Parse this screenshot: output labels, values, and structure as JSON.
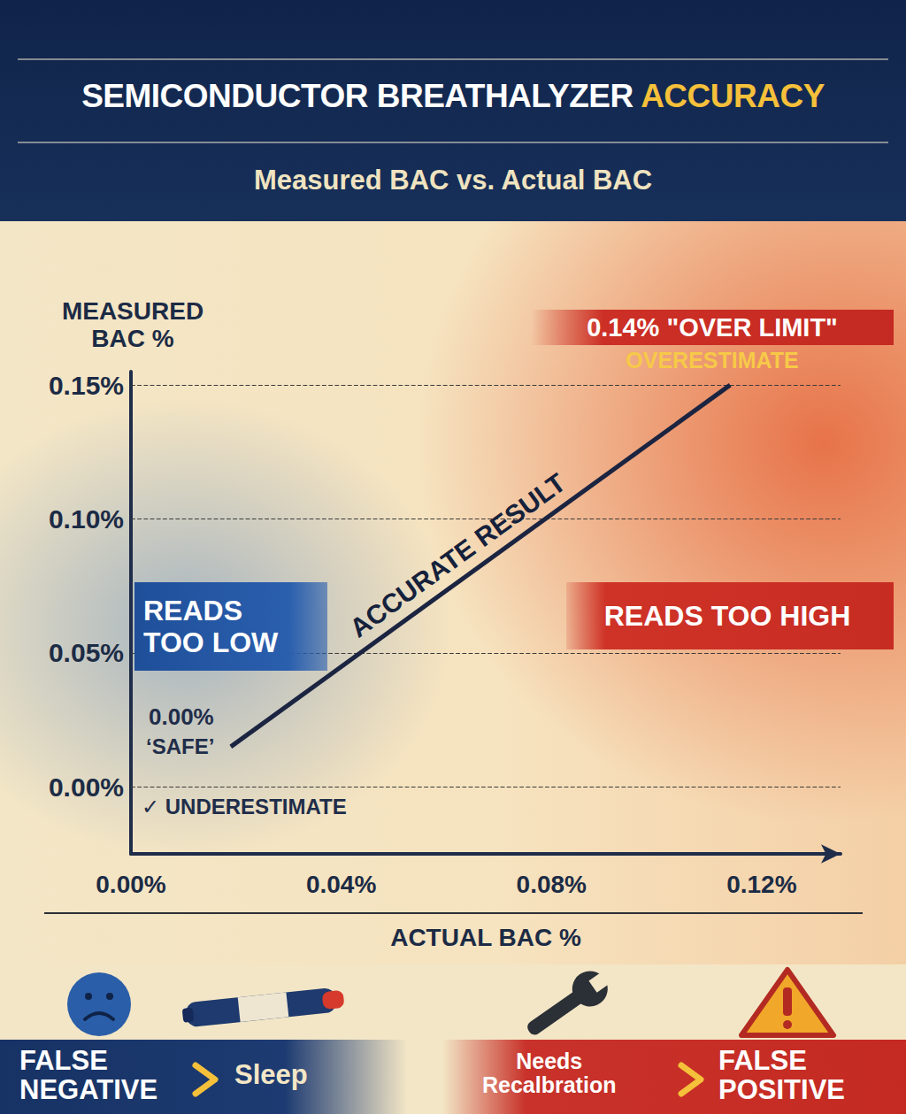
{
  "chart_data": {
    "type": "line",
    "title": "SEMICONDUCTOR BREATHALYZER ACCURACY",
    "subtitle": "Measured BAC vs. Actual BAC",
    "x_label": "ACTUAL BAC %",
    "y_label": "MEASURED BAC %",
    "x": [
      0.019,
      0.114
    ],
    "values": [
      0.015,
      0.15
    ],
    "color": "#1b2440",
    "xlim": [
      0,
      0.135
    ],
    "xticks": [
      {
        "value": 0,
        "label": "0.00%"
      },
      {
        "value": 0.04,
        "label": "0.04%"
      },
      {
        "value": 0.08,
        "label": "0.08%"
      },
      {
        "value": 0.12,
        "label": "0.12%"
      }
    ],
    "ylim": [
      -0.025,
      0.155
    ],
    "yticks": [
      {
        "value": 0,
        "label": "0.00%"
      },
      {
        "value": 0.05,
        "label": "0.05%"
      },
      {
        "value": 0.1,
        "label": "0.10%"
      },
      {
        "value": 0.15,
        "label": "0.15%"
      }
    ],
    "grid": true,
    "annotations": {
      "line_label": "ACCURATE RESULT",
      "over_limit": "0.14% \"OVER LIMIT\"",
      "overestimate": "OVERESTIMATE",
      "reads_too_high": "READS TOO HIGH",
      "reads_too_low": "READS TOO LOW",
      "safe_value": "0.00%",
      "safe": "‘SAFE’",
      "underestimate": "✓ UNDERESTIMATE"
    }
  },
  "footer": {
    "negative": [
      "FALSE NEGATIVE",
      "Sleep"
    ],
    "positive": [
      "Needs Recalbration",
      "FALSE POSITIVE"
    ]
  }
}
